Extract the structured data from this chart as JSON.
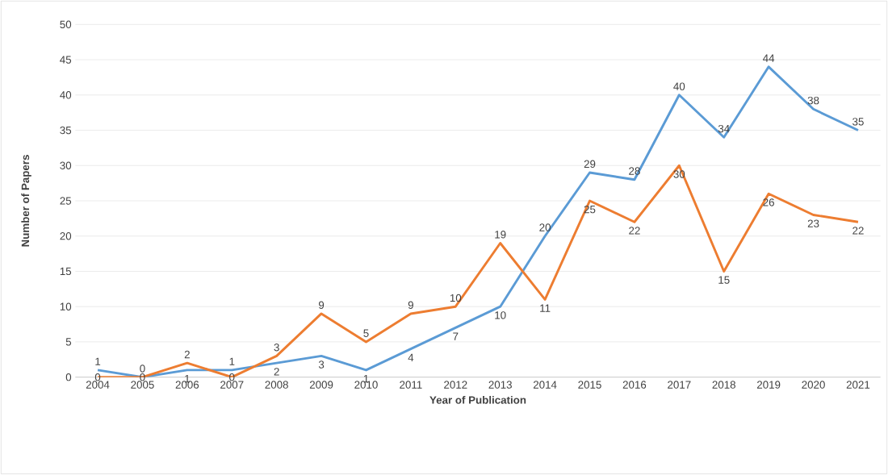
{
  "chart_data": {
    "type": "line",
    "xlabel": "Year of Publication",
    "ylabel": "Number of Papers",
    "categories": [
      "2004",
      "2005",
      "2006",
      "2007",
      "2008",
      "2009",
      "2010",
      "2011",
      "2012",
      "2013",
      "2014",
      "2015",
      "2016",
      "2017",
      "2018",
      "2019",
      "2020",
      "2021"
    ],
    "series": [
      {
        "color": "#5b9bd5",
        "values": [
          1,
          0,
          1,
          1,
          2,
          3,
          1,
          4,
          7,
          10,
          20,
          29,
          28,
          40,
          34,
          44,
          38,
          35
        ]
      },
      {
        "color": "#ed7d31",
        "values": [
          0,
          0,
          2,
          0,
          3,
          9,
          5,
          9,
          10,
          19,
          11,
          25,
          22,
          30,
          15,
          26,
          23,
          22
        ]
      }
    ],
    "ylim": [
      0,
      50
    ],
    "yticks": [
      0,
      5,
      10,
      15,
      20,
      25,
      30,
      35,
      40,
      45,
      50
    ],
    "grid": "y",
    "data_labels": true,
    "marker": "none",
    "line_style": "solid"
  }
}
